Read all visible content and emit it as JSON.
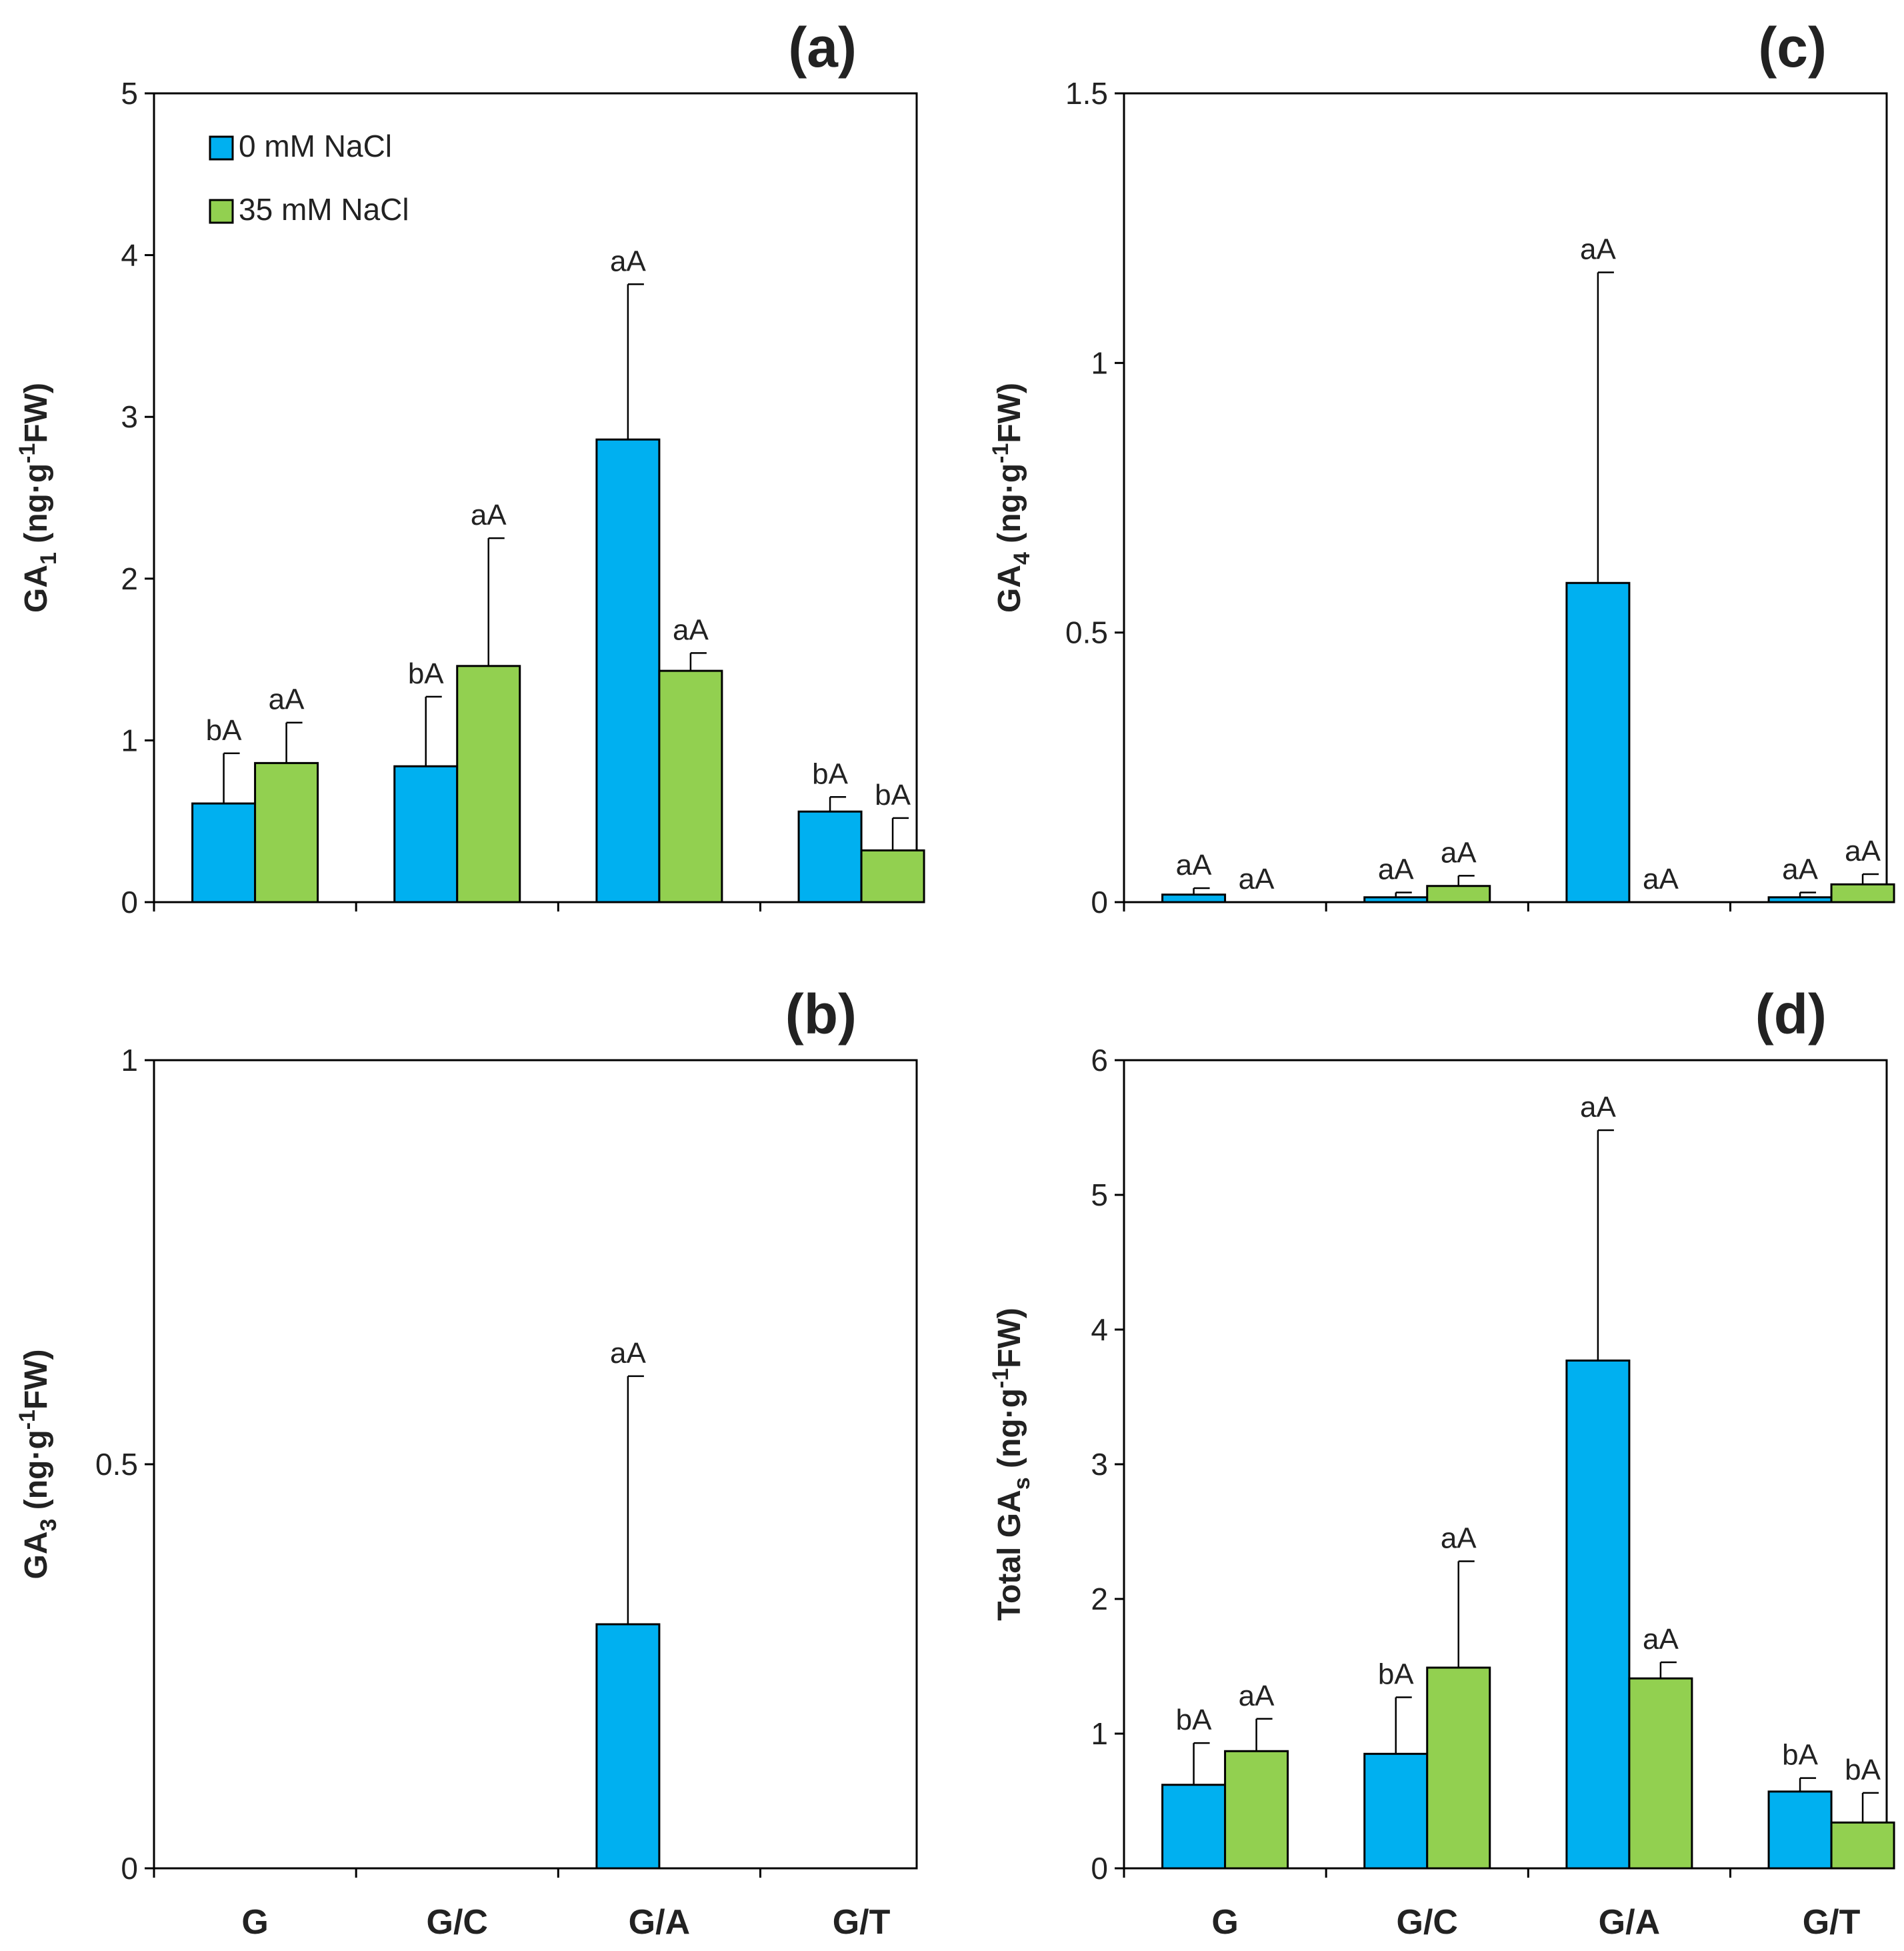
{
  "colors": {
    "series_0": "#00b0f0",
    "series_1": "#92d050"
  },
  "chart_data": [
    {
      "type": "bar",
      "panel": "(a)",
      "ylabel": {
        "base": "GA",
        "sub": "1",
        "unit_pre": " (ng·g",
        "sup": "-1",
        "unit_post": "FW)"
      },
      "ylim": [
        0,
        5
      ],
      "yticks": [
        0,
        1,
        2,
        3,
        4,
        5
      ],
      "ytick_labels": [
        "0",
        "1",
        "2",
        "3",
        "4",
        "5"
      ],
      "categories": [
        "G",
        "G/C",
        "G/A",
        "G/T"
      ],
      "show_categories": false,
      "legend": {
        "position": "top-left",
        "entries": [
          "0 mM NaCl",
          "35 mM NaCl"
        ]
      },
      "series": [
        {
          "name": "0 mM NaCl",
          "values": [
            0.61,
            0.84,
            2.86,
            0.56
          ],
          "errors": [
            0.31,
            0.43,
            0.96,
            0.09
          ],
          "labels": [
            "bA",
            "bA",
            "aA",
            "bA"
          ]
        },
        {
          "name": "35 mM NaCl",
          "values": [
            0.86,
            1.46,
            1.43,
            0.32
          ],
          "errors": [
            0.25,
            0.79,
            0.11,
            0.2
          ],
          "labels": [
            "aA",
            "aA",
            "aA",
            "bA"
          ]
        }
      ]
    },
    {
      "type": "bar",
      "panel": "(c)",
      "ylabel": {
        "base": "GA",
        "sub": "4",
        "unit_pre": " (ng·g",
        "sup": "-1",
        "unit_post": "FW)"
      },
      "ylim": [
        0,
        1.5
      ],
      "yticks": [
        0,
        0.5,
        1,
        1.5
      ],
      "ytick_labels": [
        "0",
        "0.5",
        "1",
        "1.5"
      ],
      "categories": [
        "G",
        "G/C",
        "G/A",
        "G/T"
      ],
      "show_categories": false,
      "series": [
        {
          "name": "0 mM NaCl",
          "values": [
            0.014,
            0.009,
            0.592,
            0.009
          ],
          "errors": [
            0.012,
            0.009,
            0.576,
            0.009
          ],
          "labels": [
            "aA",
            "aA",
            "aA",
            "aA"
          ]
        },
        {
          "name": "35 mM NaCl",
          "values": [
            0,
            0.03,
            0,
            0.033
          ],
          "errors": [
            0,
            0.019,
            0,
            0.019
          ],
          "labels": [
            "aA",
            "aA",
            "aA",
            "aA"
          ]
        }
      ]
    },
    {
      "type": "bar",
      "panel": "(b)",
      "ylabel": {
        "base": "GA",
        "sub": "3",
        "unit_pre": " (ng·g",
        "sup": "-1",
        "unit_post": "FW)"
      },
      "ylim": [
        0,
        1
      ],
      "yticks": [
        0,
        0.5,
        1
      ],
      "ytick_labels": [
        "0",
        "0.5",
        "1"
      ],
      "categories": [
        "G",
        "G/C",
        "G/A",
        "G/T"
      ],
      "show_categories": true,
      "series": [
        {
          "name": "0 mM NaCl",
          "values": [
            0,
            0,
            0.302,
            0
          ],
          "errors": [
            0,
            0,
            0.307,
            0
          ],
          "labels": [
            "",
            "",
            "aA",
            ""
          ]
        },
        {
          "name": "35 mM NaCl",
          "values": [
            0,
            0,
            0,
            0
          ],
          "errors": [
            0,
            0,
            0,
            0
          ],
          "labels": [
            "",
            "",
            "",
            ""
          ]
        }
      ]
    },
    {
      "type": "bar",
      "panel": "(d)",
      "ylabel": {
        "base": "Total GA",
        "sub": "s",
        "unit_pre": " (ng·g",
        "sup": "-1",
        "unit_post": "FW)"
      },
      "ylim": [
        0,
        6
      ],
      "yticks": [
        0,
        1,
        2,
        3,
        4,
        5,
        6
      ],
      "ytick_labels": [
        "0",
        "1",
        "2",
        "3",
        "4",
        "5",
        "6"
      ],
      "categories": [
        "G",
        "G/C",
        "G/A",
        "G/T"
      ],
      "show_categories": true,
      "series": [
        {
          "name": "0 mM NaCl",
          "values": [
            0.62,
            0.85,
            3.77,
            0.57
          ],
          "errors": [
            0.31,
            0.42,
            1.71,
            0.1
          ],
          "labels": [
            "bA",
            "bA",
            "aA",
            "bA"
          ]
        },
        {
          "name": "35 mM NaCl",
          "values": [
            0.87,
            1.49,
            1.41,
            0.34
          ],
          "errors": [
            0.24,
            0.79,
            0.12,
            0.22
          ],
          "labels": [
            "aA",
            "aA",
            "aA",
            "bA"
          ]
        }
      ]
    }
  ]
}
